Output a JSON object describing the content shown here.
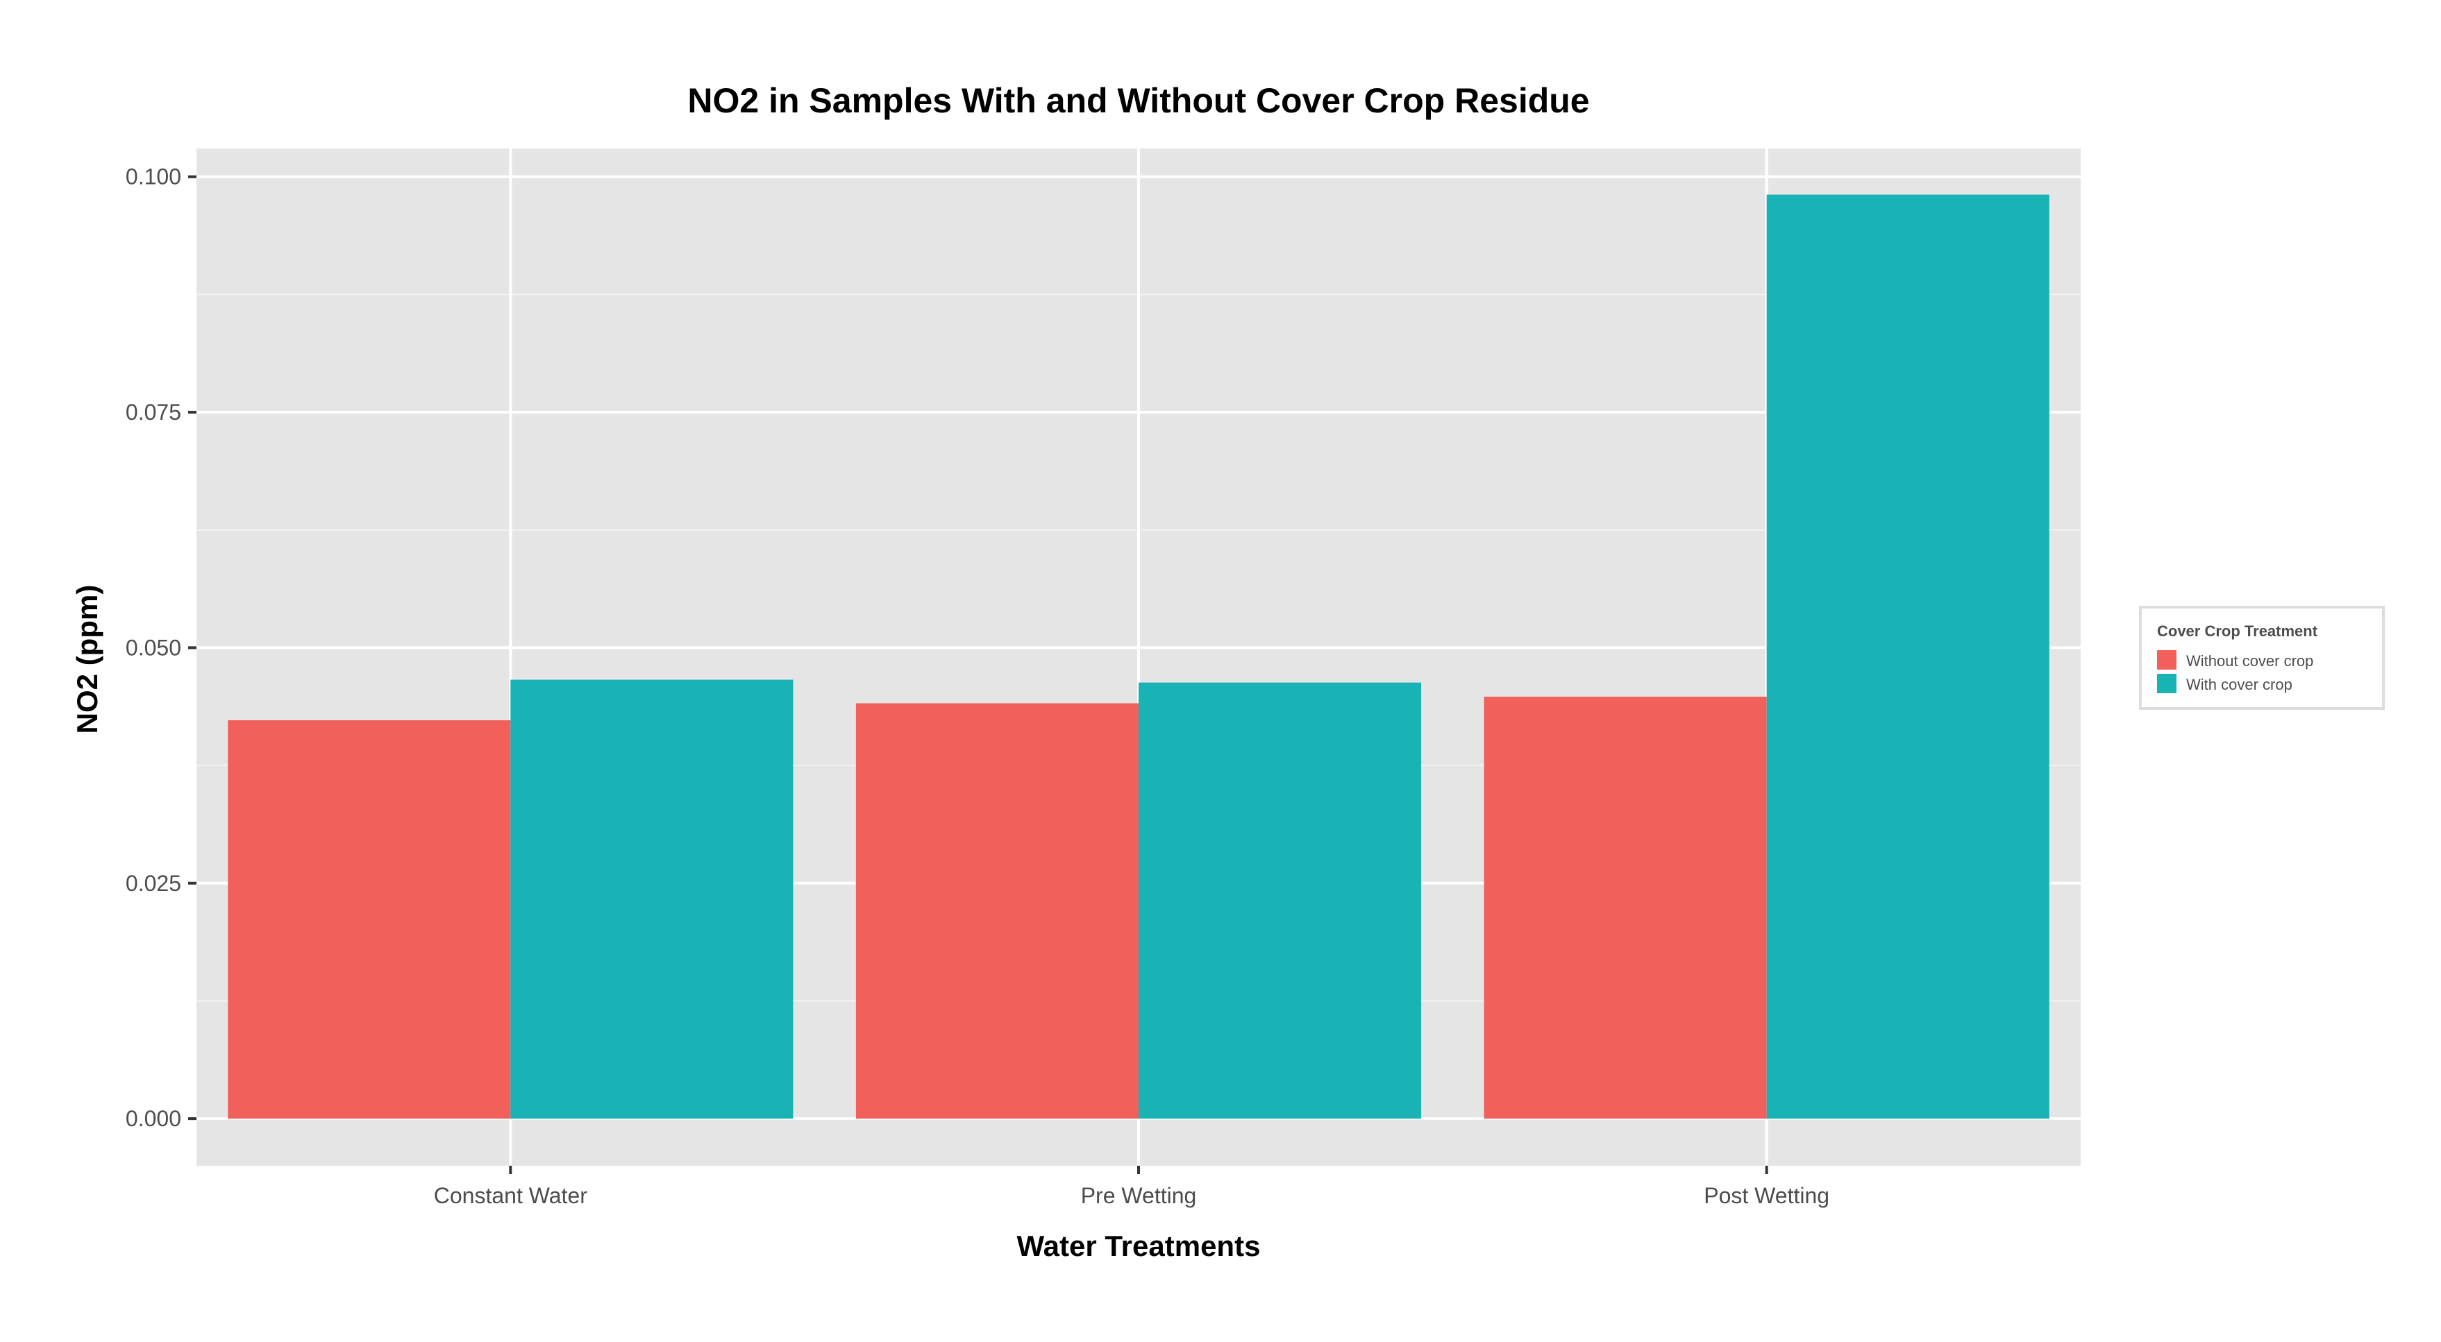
{
  "chart_data": {
    "type": "bar",
    "title": "NO2 in Samples With and Without Cover Crop Residue",
    "xlabel": "Water Treatments",
    "ylabel": "NO2 (ppm)",
    "categories": [
      "Constant Water",
      "Pre Wetting",
      "Post Wetting"
    ],
    "series": [
      {
        "name": "Without cover crop",
        "color": "#F2605C",
        "values": [
          0.0423,
          0.0441,
          0.0448
        ]
      },
      {
        "name": "With cover crop",
        "color": "#19B3B6",
        "values": [
          0.0466,
          0.0463,
          0.0981
        ]
      }
    ],
    "ylim": [
      -0.005,
      0.103
    ],
    "yticks": [
      "0.000",
      "0.025",
      "0.050",
      "0.075",
      "0.100"
    ],
    "grid": true,
    "legend": {
      "title": "Cover Crop Treatment",
      "position": "right"
    }
  },
  "colors": {
    "panel_background": "#E5E5E5",
    "grid_major": "#FFFFFF",
    "grid_minor": "#F2F2F2"
  }
}
